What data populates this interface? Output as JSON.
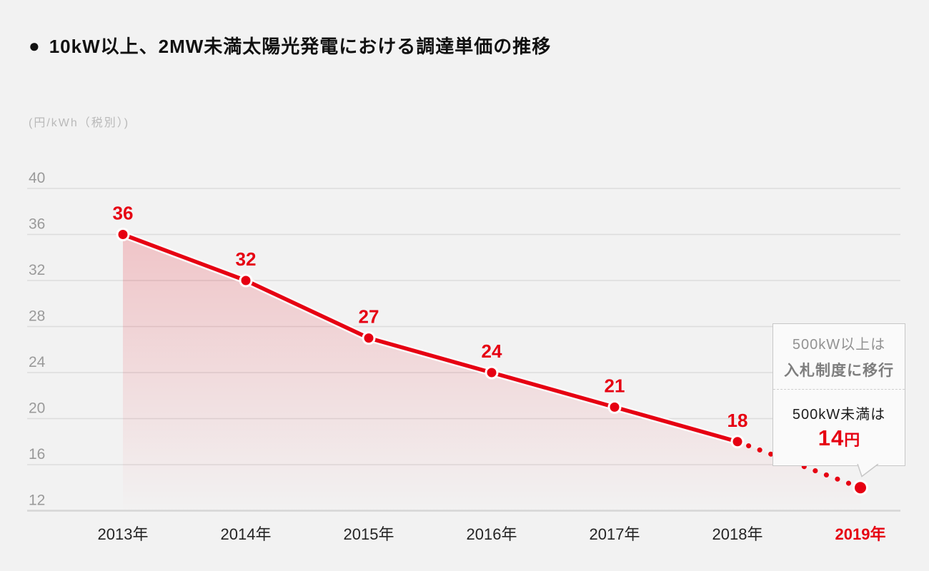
{
  "header": {
    "bullet": "●",
    "title": "10kW以上、2MW未満太陽光発電における調達単価の推移"
  },
  "chart_data": {
    "type": "line",
    "title": "10kW以上、2MW未満太陽光発電における調達単価の推移",
    "unit_label": "(円/kWh（税別）)",
    "categories": [
      "2013年",
      "2014年",
      "2015年",
      "2016年",
      "2017年",
      "2018年",
      "2019年"
    ],
    "values": [
      36,
      32,
      27,
      24,
      21,
      18,
      14
    ],
    "point_labels": [
      "36",
      "32",
      "27",
      "24",
      "21",
      "18",
      ""
    ],
    "yticks": [
      40,
      36,
      32,
      28,
      24,
      20,
      16,
      12
    ],
    "ylim": [
      12,
      40
    ],
    "grid": true,
    "legend": "none",
    "solid_until_index": 5,
    "dotted_segment": "2018年-2019年 (projected)",
    "last_category_highlighted": true,
    "colors": {
      "line": "#e60012",
      "grid": "#dcdcdc",
      "axis": "#d6d6d6",
      "ytick_text": "#9a9a9a",
      "xtick_text": "#242424",
      "halo": "#fbfbfb",
      "background": "#f2f2f2"
    }
  },
  "callout": {
    "line1": "500kW以上は",
    "line2": "入札制度に移行",
    "line3": "500kW未満は",
    "price_value": "14",
    "price_unit": "円"
  }
}
